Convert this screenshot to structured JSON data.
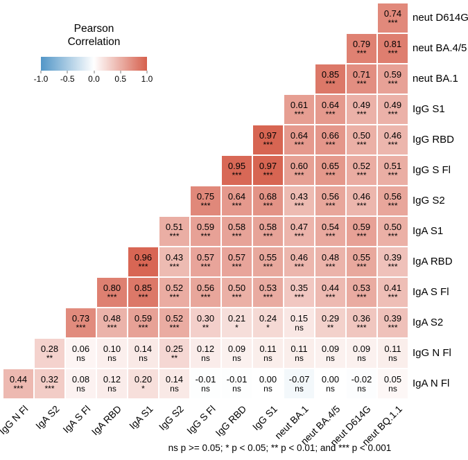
{
  "footnote": "ns p >= 0.05; * p < 0.05; ** p < 0.01; and *** p < 0.001",
  "chart_data": {
    "type": "heatmap",
    "legend": {
      "title_display": "Pearson\nCorrelation",
      "ticks": [
        "-1.0",
        "-0.5",
        "0.0",
        "0.5",
        "1.0"
      ]
    },
    "value_range": [
      -1.0,
      1.0
    ],
    "colormap": {
      "negative": "#5296c7",
      "zero": "#ffffff",
      "positive": "#d6604d"
    },
    "columns": [
      "IgG N Fl",
      "IgA S2",
      "IgA S Fl",
      "IgA RBD",
      "IgA S1",
      "IgG S2",
      "IgG S Fl",
      "IgG RBD",
      "IgG S1",
      "neut BA.1",
      "neut BA.4/5",
      "neut D614G",
      "neut BQ.1.1"
    ],
    "rows": [
      {
        "label": "neut D614G",
        "cells": [
          {
            "v": 0.74,
            "s": "***"
          }
        ]
      },
      {
        "label": "neut BA.4/5",
        "cells": [
          {
            "v": 0.79,
            "s": "***"
          },
          {
            "v": 0.81,
            "s": "***"
          }
        ]
      },
      {
        "label": "neut BA.1",
        "cells": [
          {
            "v": 0.85,
            "s": "***"
          },
          {
            "v": 0.71,
            "s": "***"
          },
          {
            "v": 0.59,
            "s": "***"
          }
        ]
      },
      {
        "label": "IgG S1",
        "cells": [
          {
            "v": 0.61,
            "s": "***"
          },
          {
            "v": 0.64,
            "s": "***"
          },
          {
            "v": 0.49,
            "s": "***"
          },
          {
            "v": 0.49,
            "s": "***"
          }
        ]
      },
      {
        "label": "IgG RBD",
        "cells": [
          {
            "v": 0.97,
            "s": "***"
          },
          {
            "v": 0.64,
            "s": "***"
          },
          {
            "v": 0.66,
            "s": "***"
          },
          {
            "v": 0.5,
            "s": "***"
          },
          {
            "v": 0.46,
            "s": "***"
          }
        ]
      },
      {
        "label": "IgG S Fl",
        "cells": [
          {
            "v": 0.95,
            "s": "***"
          },
          {
            "v": 0.97,
            "s": "***"
          },
          {
            "v": 0.6,
            "s": "***"
          },
          {
            "v": 0.65,
            "s": "***"
          },
          {
            "v": 0.52,
            "s": "***"
          },
          {
            "v": 0.51,
            "s": "***"
          }
        ]
      },
      {
        "label": "IgG S2",
        "cells": [
          {
            "v": 0.75,
            "s": "***"
          },
          {
            "v": 0.64,
            "s": "***"
          },
          {
            "v": 0.68,
            "s": "***"
          },
          {
            "v": 0.43,
            "s": "***"
          },
          {
            "v": 0.56,
            "s": "***"
          },
          {
            "v": 0.46,
            "s": "***"
          },
          {
            "v": 0.56,
            "s": "***"
          }
        ]
      },
      {
        "label": "IgA S1",
        "cells": [
          {
            "v": 0.51,
            "s": "***"
          },
          {
            "v": 0.59,
            "s": "***"
          },
          {
            "v": 0.58,
            "s": "***"
          },
          {
            "v": 0.58,
            "s": "***"
          },
          {
            "v": 0.47,
            "s": "***"
          },
          {
            "v": 0.54,
            "s": "***"
          },
          {
            "v": 0.59,
            "s": "***"
          },
          {
            "v": 0.5,
            "s": "***"
          }
        ]
      },
      {
        "label": "IgA RBD",
        "cells": [
          {
            "v": 0.96,
            "s": "***"
          },
          {
            "v": 0.43,
            "s": "***"
          },
          {
            "v": 0.57,
            "s": "***"
          },
          {
            "v": 0.57,
            "s": "***"
          },
          {
            "v": 0.55,
            "s": "***"
          },
          {
            "v": 0.46,
            "s": "***"
          },
          {
            "v": 0.48,
            "s": "***"
          },
          {
            "v": 0.55,
            "s": "***"
          },
          {
            "v": 0.39,
            "s": "***"
          }
        ]
      },
      {
        "label": "IgA S Fl",
        "cells": [
          {
            "v": 0.8,
            "s": "***"
          },
          {
            "v": 0.85,
            "s": "***"
          },
          {
            "v": 0.52,
            "s": "***"
          },
          {
            "v": 0.56,
            "s": "***"
          },
          {
            "v": 0.5,
            "s": "***"
          },
          {
            "v": 0.53,
            "s": "***"
          },
          {
            "v": 0.35,
            "s": "***"
          },
          {
            "v": 0.44,
            "s": "***"
          },
          {
            "v": 0.53,
            "s": "***"
          },
          {
            "v": 0.41,
            "s": "***"
          }
        ]
      },
      {
        "label": "IgA S2",
        "cells": [
          {
            "v": 0.73,
            "s": "***"
          },
          {
            "v": 0.48,
            "s": "***"
          },
          {
            "v": 0.59,
            "s": "***"
          },
          {
            "v": 0.52,
            "s": "***"
          },
          {
            "v": 0.3,
            "s": "**"
          },
          {
            "v": 0.21,
            "s": "*"
          },
          {
            "v": 0.24,
            "s": "*"
          },
          {
            "v": 0.15,
            "s": "ns"
          },
          {
            "v": 0.29,
            "s": "**"
          },
          {
            "v": 0.36,
            "s": "***"
          },
          {
            "v": 0.39,
            "s": "***"
          }
        ]
      },
      {
        "label": "IgG N Fl",
        "cells": [
          {
            "v": 0.28,
            "s": "**"
          },
          {
            "v": 0.06,
            "s": "ns"
          },
          {
            "v": 0.1,
            "s": "ns"
          },
          {
            "v": 0.14,
            "s": "ns"
          },
          {
            "v": 0.25,
            "s": "**"
          },
          {
            "v": 0.12,
            "s": "ns"
          },
          {
            "v": 0.09,
            "s": "ns"
          },
          {
            "v": 0.11,
            "s": "ns"
          },
          {
            "v": 0.11,
            "s": "ns"
          },
          {
            "v": 0.09,
            "s": "ns"
          },
          {
            "v": 0.09,
            "s": "ns"
          },
          {
            "v": 0.11,
            "s": "ns"
          }
        ]
      },
      {
        "label": "IgA N Fl",
        "cells": [
          {
            "v": 0.44,
            "s": "***"
          },
          {
            "v": 0.32,
            "s": "***"
          },
          {
            "v": 0.08,
            "s": "ns"
          },
          {
            "v": 0.12,
            "s": "ns"
          },
          {
            "v": 0.2,
            "s": "*"
          },
          {
            "v": 0.14,
            "s": "ns"
          },
          {
            "v": -0.01,
            "s": "ns"
          },
          {
            "v": -0.01,
            "s": "ns"
          },
          {
            "v": 0.0,
            "s": "ns"
          },
          {
            "v": -0.07,
            "s": "ns"
          },
          {
            "v": 0.0,
            "s": "ns"
          },
          {
            "v": -0.02,
            "s": "ns"
          },
          {
            "v": 0.05,
            "s": "ns"
          }
        ]
      }
    ]
  }
}
